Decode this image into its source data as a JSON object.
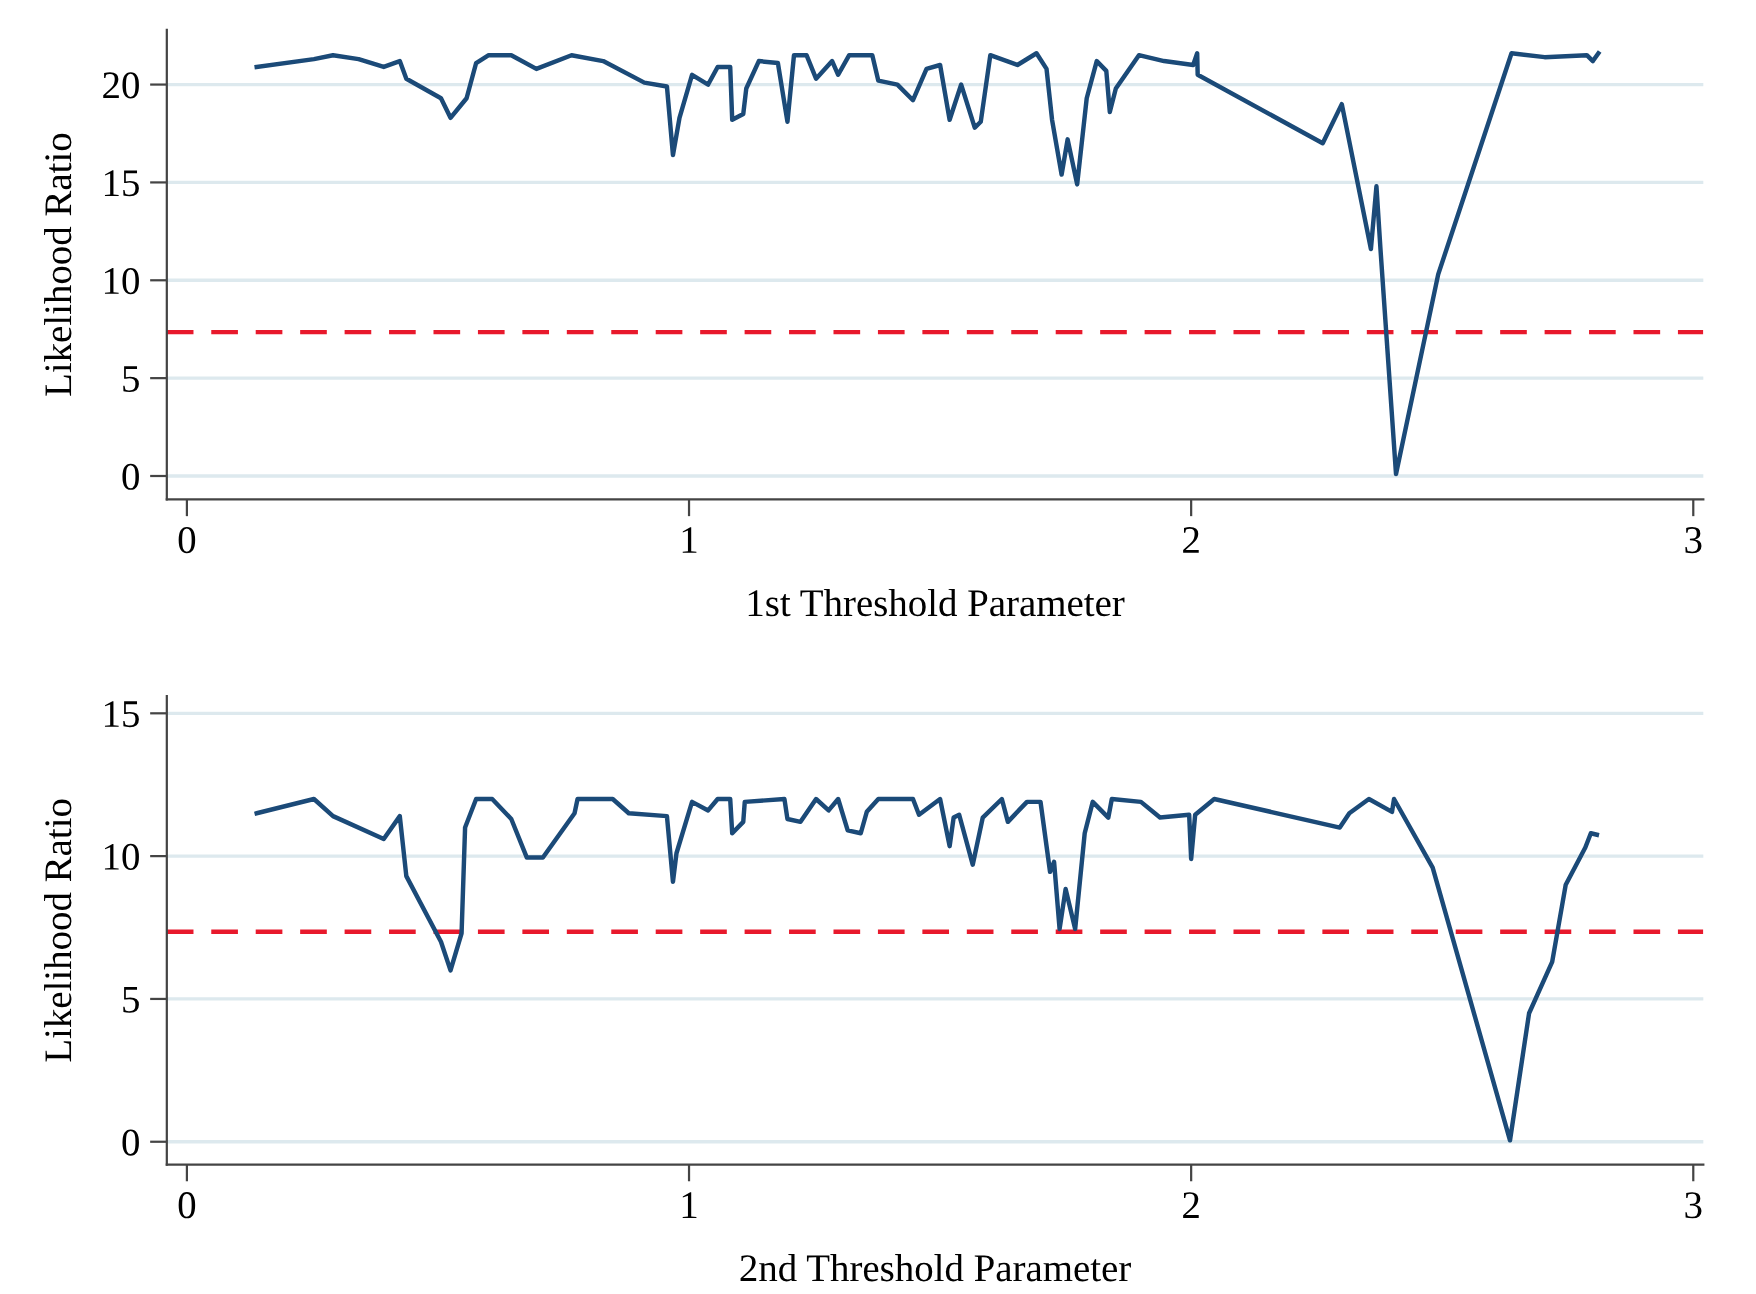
{
  "chart_data": [
    {
      "type": "line",
      "xlabel": "1st Threshold Parameter",
      "ylabel": "Likelihood Ratio",
      "xlim": [
        -0.04,
        3.02
      ],
      "ylim": [
        -1.2,
        22.8
      ],
      "xticks": [
        0,
        1,
        2,
        3
      ],
      "yticks": [
        0,
        5,
        10,
        15,
        20
      ],
      "grid": "y",
      "marker": "none",
      "line_style": "solid",
      "ref_lines": [
        {
          "axis": "y",
          "value": 7.35,
          "color": "#e8192c",
          "line_style": "dashed"
        }
      ],
      "series": [
        {
          "color": "#1b4a78",
          "x": [
            0.139,
            0.253,
            0.291,
            0.342,
            0.392,
            0.424,
            0.437,
            0.506,
            0.525,
            0.557,
            0.576,
            0.601,
            0.646,
            0.696,
            0.766,
            0.829,
            0.911,
            0.956,
            0.968,
            0.981,
            1.006,
            1.038,
            1.057,
            1.082,
            1.086,
            1.108,
            1.114,
            1.139,
            1.177,
            1.196,
            1.209,
            1.234,
            1.253,
            1.285,
            1.297,
            1.319,
            1.365,
            1.377,
            1.415,
            1.446,
            1.473,
            1.5,
            1.519,
            1.542,
            1.569,
            1.581,
            1.6,
            1.654,
            1.692,
            1.712,
            1.723,
            1.742,
            1.754,
            1.773,
            1.792,
            1.812,
            1.831,
            1.838,
            1.85,
            1.896,
            1.946,
            2.004,
            2.012,
            2.013,
            2.262,
            2.3,
            2.358,
            2.369,
            2.377,
            2.408,
            2.492,
            2.638,
            2.704,
            2.788,
            2.8,
            2.811
          ],
          "values": [
            20.9,
            21.3,
            21.5,
            21.3,
            20.9,
            21.2,
            20.3,
            19.3,
            18.3,
            19.3,
            21.1,
            21.5,
            21.5,
            20.8,
            21.5,
            21.2,
            20.1,
            19.9,
            16.4,
            18.3,
            20.5,
            20.0,
            20.9,
            20.9,
            18.2,
            18.5,
            19.8,
            21.2,
            21.1,
            18.1,
            21.5,
            21.5,
            20.3,
            21.2,
            20.5,
            21.5,
            21.5,
            20.2,
            20.0,
            19.2,
            20.8,
            21.0,
            18.2,
            20.0,
            17.8,
            18.1,
            21.5,
            21.0,
            21.6,
            20.8,
            18.2,
            15.4,
            17.2,
            14.9,
            19.3,
            21.2,
            20.7,
            18.6,
            19.8,
            21.5,
            21.2,
            21.0,
            21.6,
            20.5,
            17.0,
            19.0,
            11.6,
            14.8,
            11.6,
            0.1,
            10.3,
            21.6,
            21.4,
            21.5,
            21.2,
            21.6
          ]
        }
      ]
    },
    {
      "type": "line",
      "xlabel": "2nd Threshold Parameter",
      "ylabel": "Likelihood Ratio",
      "xlim": [
        -0.04,
        3.02
      ],
      "ylim": [
        -0.8,
        15.6
      ],
      "xticks": [
        0,
        1,
        2,
        3
      ],
      "yticks": [
        0,
        5,
        10,
        15
      ],
      "grid": "y",
      "marker": "none",
      "line_style": "solid",
      "ref_lines": [
        {
          "axis": "y",
          "value": 7.35,
          "color": "#e8192c",
          "line_style": "dashed"
        }
      ],
      "series": [
        {
          "color": "#1b4a78",
          "x": [
            0.139,
            0.253,
            0.291,
            0.392,
            0.424,
            0.437,
            0.506,
            0.525,
            0.547,
            0.554,
            0.576,
            0.608,
            0.646,
            0.677,
            0.709,
            0.772,
            0.778,
            0.848,
            0.88,
            0.956,
            0.968,
            0.975,
            1.006,
            1.038,
            1.057,
            1.082,
            1.086,
            1.108,
            1.111,
            1.19,
            1.196,
            1.222,
            1.253,
            1.278,
            1.297,
            1.316,
            1.342,
            1.354,
            1.377,
            1.446,
            1.458,
            1.5,
            1.519,
            1.527,
            1.538,
            1.565,
            1.585,
            1.623,
            1.635,
            1.673,
            1.7,
            1.719,
            1.727,
            1.738,
            1.75,
            1.769,
            1.788,
            1.804,
            1.835,
            1.842,
            1.9,
            1.938,
            1.996,
            2.0,
            2.008,
            2.046,
            2.296,
            2.315,
            2.354,
            2.4,
            2.404,
            2.481,
            2.635,
            2.673,
            2.719,
            2.746,
            2.785,
            2.796,
            2.808
          ],
          "values": [
            11.5,
            12.0,
            11.4,
            10.6,
            11.4,
            9.3,
            7.0,
            6.0,
            7.3,
            11.0,
            12.0,
            12.0,
            11.3,
            9.95,
            9.95,
            11.5,
            12.0,
            12.0,
            11.5,
            11.4,
            9.1,
            10.1,
            11.9,
            11.6,
            12.0,
            12.0,
            10.8,
            11.2,
            11.9,
            12.0,
            11.3,
            11.2,
            12.0,
            11.6,
            12.0,
            10.9,
            10.8,
            11.55,
            12.0,
            12.0,
            11.45,
            12.0,
            10.35,
            11.35,
            11.45,
            9.7,
            11.35,
            12.0,
            11.2,
            11.9,
            11.9,
            9.45,
            9.8,
            7.45,
            8.85,
            7.45,
            10.8,
            11.9,
            11.35,
            12.0,
            11.9,
            11.35,
            11.45,
            9.9,
            11.45,
            12.0,
            11.0,
            11.5,
            12.0,
            11.55,
            12.0,
            9.6,
            0.05,
            4.5,
            6.3,
            9.0,
            10.3,
            10.8,
            10.75
          ]
        }
      ]
    }
  ]
}
